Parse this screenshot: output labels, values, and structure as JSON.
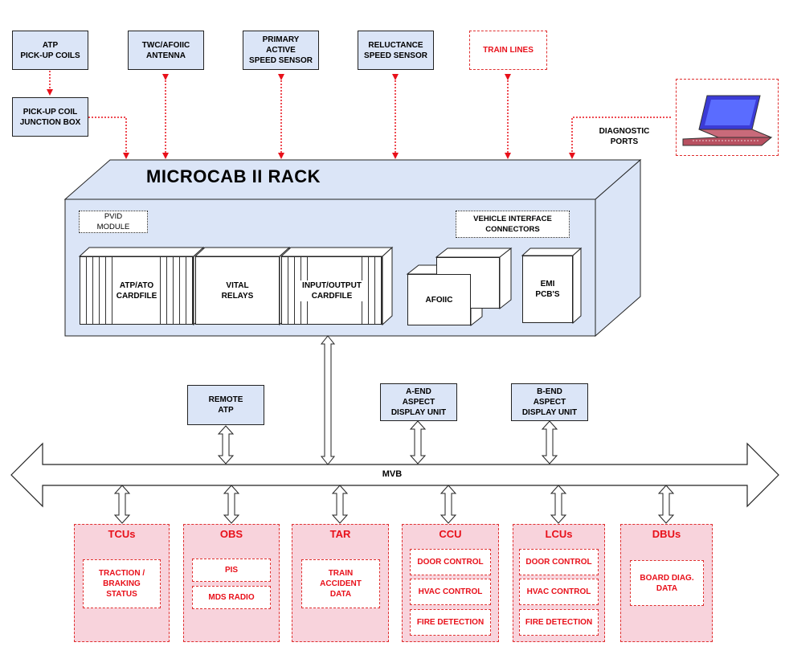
{
  "diagram": {
    "rack_title": "MICROCAB II RACK",
    "top_inputs": {
      "atp_coils": "ATP\nPICK-UP COILS",
      "junction_box": "PICK-UP COIL\nJUNCTION BOX",
      "antenna": "TWC/AFOIIC\nANTENNA",
      "primary_sensor": "PRIMARY\nACTIVE\nSPEED SENSOR",
      "reluctance_sensor": "RELUCTANCE\nSPEED SENSOR",
      "train_lines": "TRAIN LINES",
      "diagnostic_ports": "DIAGNOSTIC\nPORTS"
    },
    "rack": {
      "pvid": "PVID\nMODULE",
      "vehicle_interface": "VEHICLE INTERFACE\nCONNECTORS",
      "atp_ato": "ATP/ATO\nCARDFILE",
      "vital_relays": "VITAL\nRELAYS",
      "io_cardfile": "INPUT/OUTPUT\nCARDFILE",
      "afoiic": "AFOIIC",
      "emi": "EMI\nPCB'S"
    },
    "bus_label": "MVB",
    "bus_top_units": {
      "remote_atp": "REMOTE\nATP",
      "a_end": "A-END\nASPECT\nDISPLAY UNIT",
      "b_end": "B-END\nASPECT\nDISPLAY UNIT"
    },
    "subsystems": [
      {
        "title": "TCUs",
        "items": [
          "TRACTION /\nBRAKING\nSTATUS"
        ]
      },
      {
        "title": "OBS",
        "items": [
          "PIS",
          "MDS RADIO"
        ]
      },
      {
        "title": "TAR",
        "items": [
          "TRAIN\nACCIDENT\nDATA"
        ]
      },
      {
        "title": "CCU",
        "items": [
          "DOOR CONTROL",
          "HVAC CONTROL",
          "FIRE DETECTION"
        ]
      },
      {
        "title": "LCUs",
        "items": [
          "DOOR CONTROL",
          "HVAC CONTROL",
          "FIRE DETECTION"
        ]
      },
      {
        "title": "DBUs",
        "items": [
          "BOARD DIAG.\nDATA"
        ]
      }
    ],
    "colors": {
      "red": "#e8101a",
      "blue_fill": "#dbe5f7",
      "pink_fill": "#f8d3dc"
    }
  }
}
